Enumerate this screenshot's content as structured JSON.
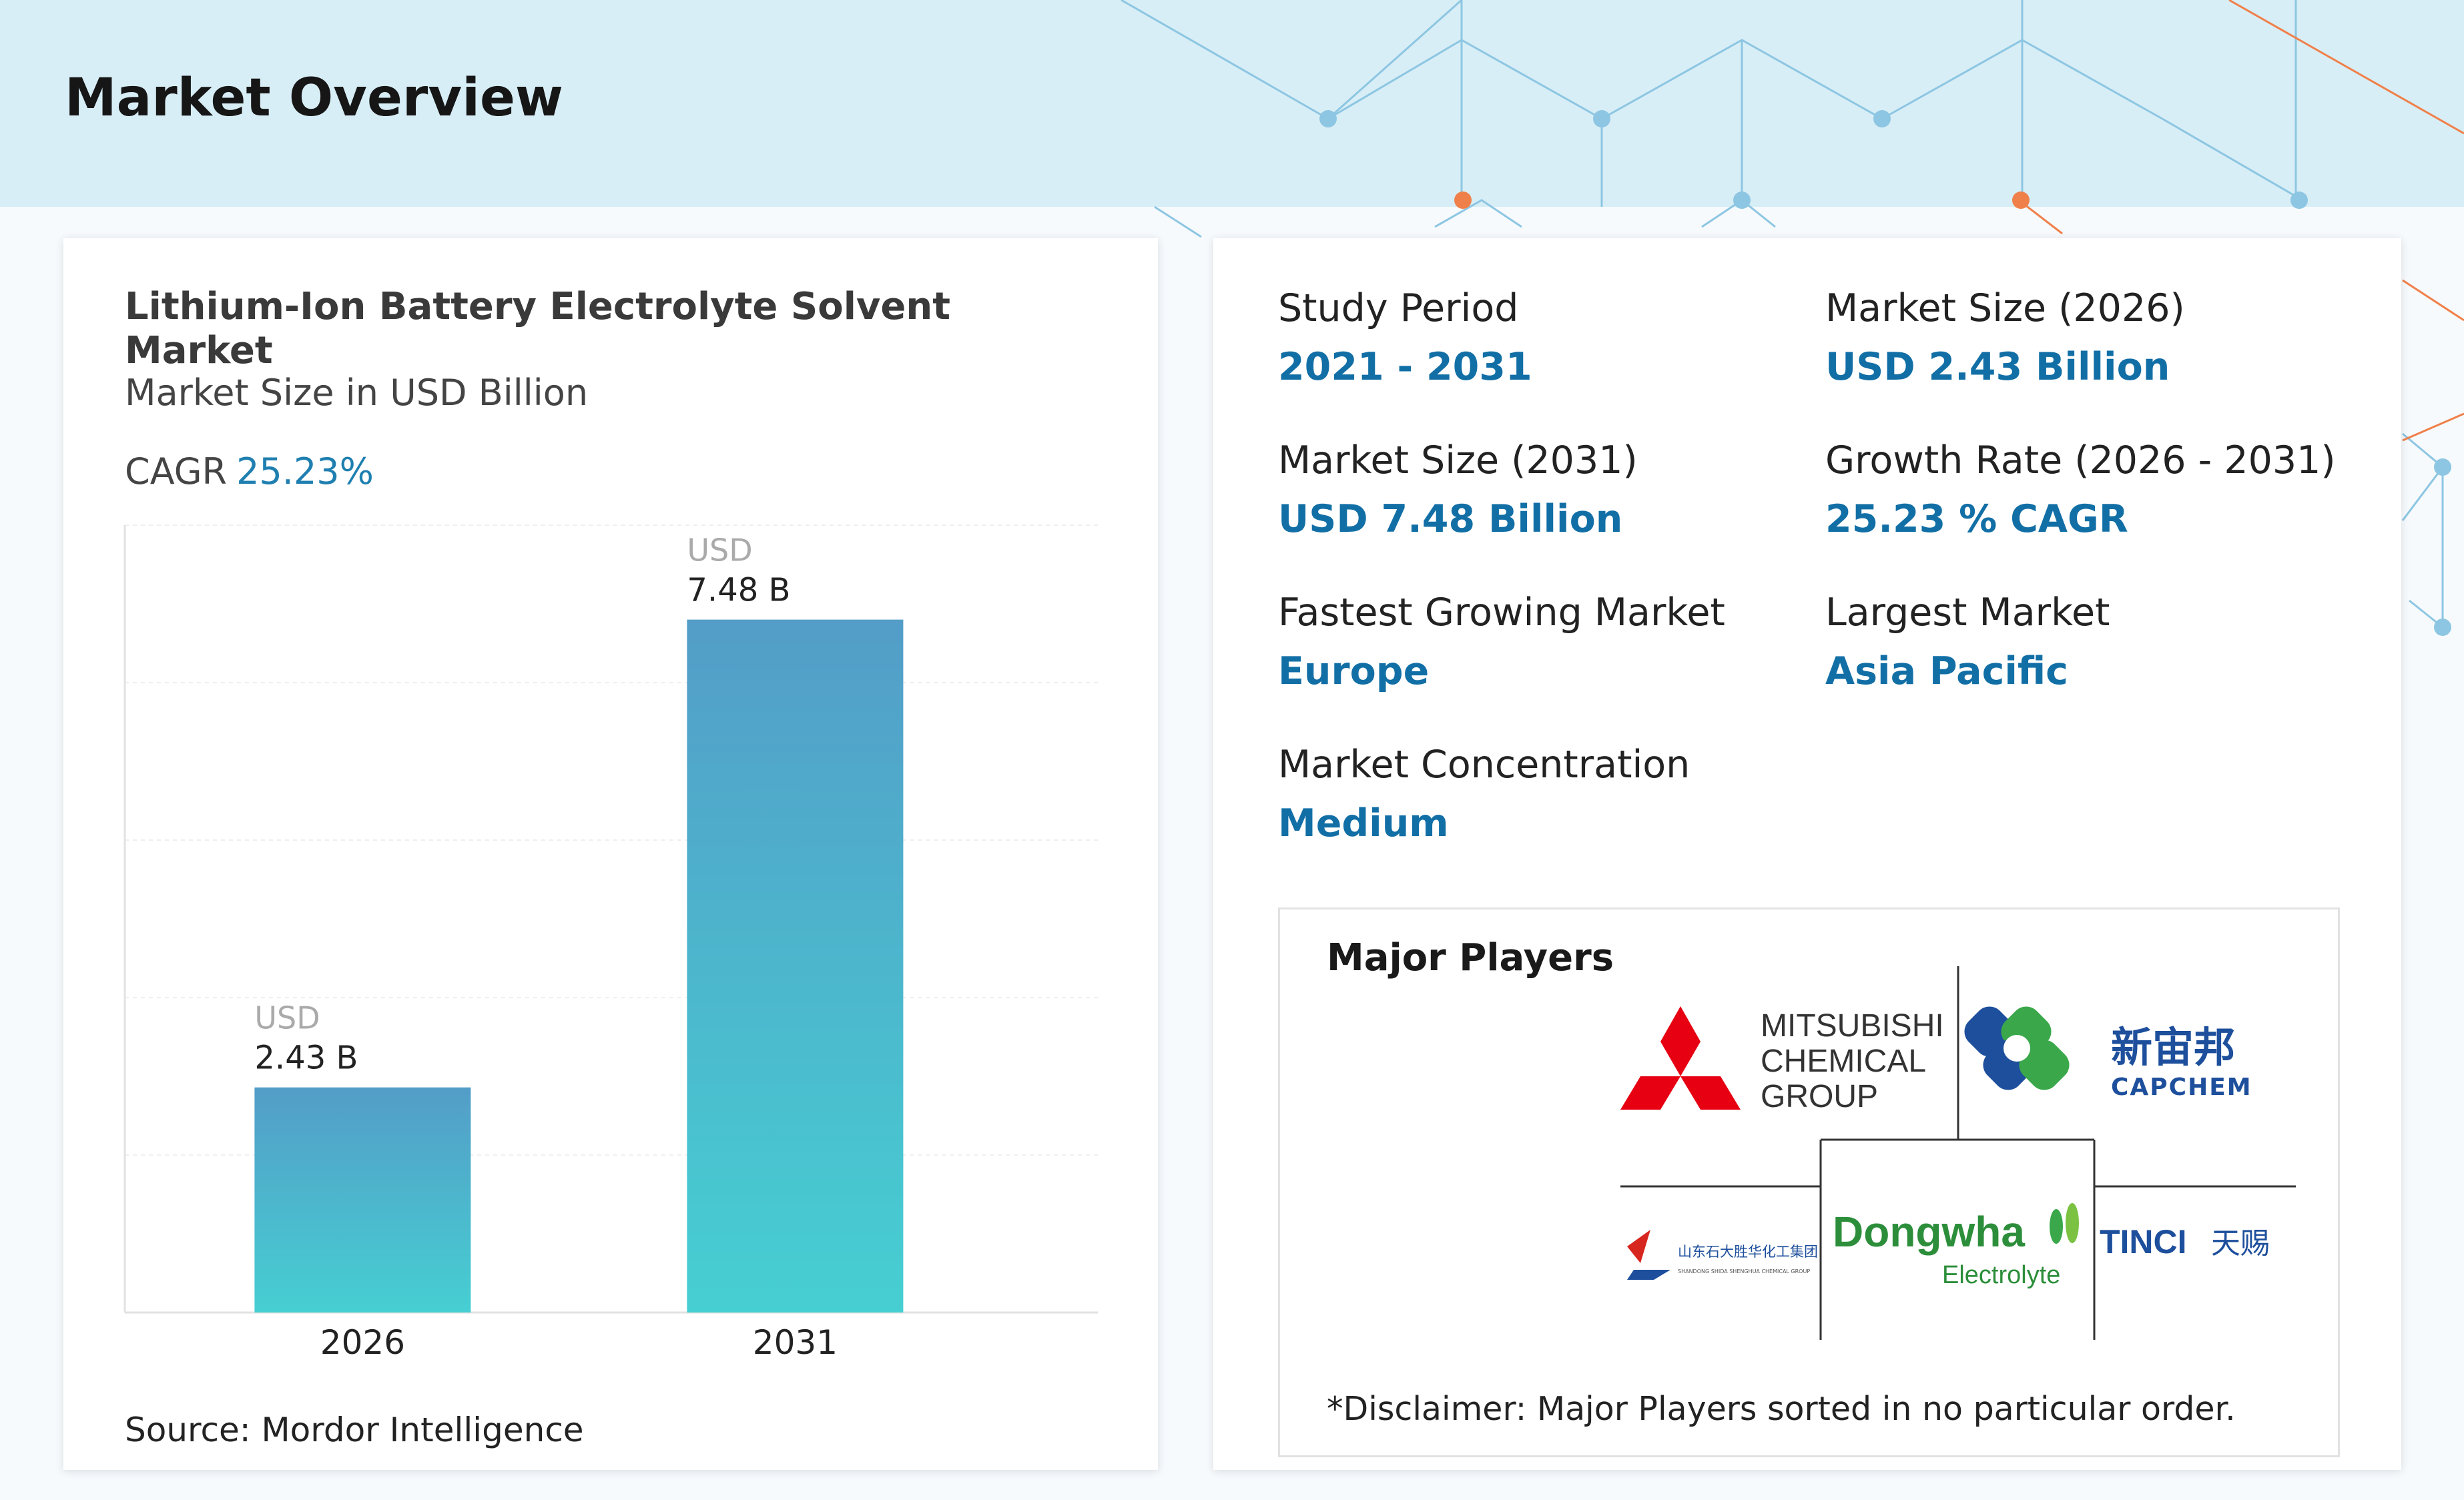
{
  "page": {
    "title": "Market Overview"
  },
  "chart_card": {
    "title": "Lithium-Ion Battery Electrolyte Solvent Market",
    "subtitle": "Market Size in USD Billion",
    "cagr_label": "CAGR",
    "cagr_value": "25.23%",
    "source": "Source: Mordor Intelligence"
  },
  "chart_data": {
    "type": "bar",
    "title": "Lithium-Ion Battery Electrolyte Solvent Market",
    "subtitle": "Market Size in USD Billion",
    "categories": [
      "2026",
      "2031"
    ],
    "values": [
      2.43,
      7.48
    ],
    "data_labels": [
      {
        "unit": "USD",
        "value": "2.43 B"
      },
      {
        "unit": "USD",
        "value": "7.48 B"
      }
    ],
    "ylim": [
      0,
      8.5
    ],
    "grid": true,
    "colors": {
      "bar_top": "#539dc8",
      "bar_bottom": "#46cfd2"
    }
  },
  "stats": {
    "study_period": {
      "label": "Study Period",
      "value": "2021 - 2031"
    },
    "market_size_2026": {
      "label": "Market Size (2026)",
      "value": "USD 2.43 Billion"
    },
    "market_size_2031": {
      "label": "Market Size (2031)",
      "value": "USD 7.48 Billion"
    },
    "growth_rate": {
      "label": "Growth Rate (2026 - 2031)",
      "value": "25.23 % CAGR"
    },
    "fastest_growing": {
      "label": "Fastest Growing Market",
      "value": "Europe"
    },
    "largest_market": {
      "label": "Largest Market",
      "value": "Asia Pacific"
    },
    "concentration": {
      "label": "Market Concentration",
      "value": "Medium"
    }
  },
  "players": {
    "title": "Major Players",
    "disclaimer": "*Disclaimer: Major Players sorted in no particular order.",
    "logos": {
      "mitsubishi": [
        "MITSUBISHI",
        "CHEMICAL",
        "GROUP"
      ],
      "capchem": [
        "新宙邦",
        "CAPCHEM"
      ],
      "shida": [
        "山东石大胜华化工集团",
        "SHANDONG SHIDA SHENGHUA CHEMICAL GROUP"
      ],
      "dongwha": [
        "Dongwha",
        "Electrolyte"
      ],
      "tinci": [
        "TINCI",
        "天赐"
      ]
    }
  },
  "colors": {
    "accent": "#126fa6",
    "header_bg": "#d8eef6",
    "network_blue": "#85c2e0",
    "network_orange": "#f0804a"
  }
}
